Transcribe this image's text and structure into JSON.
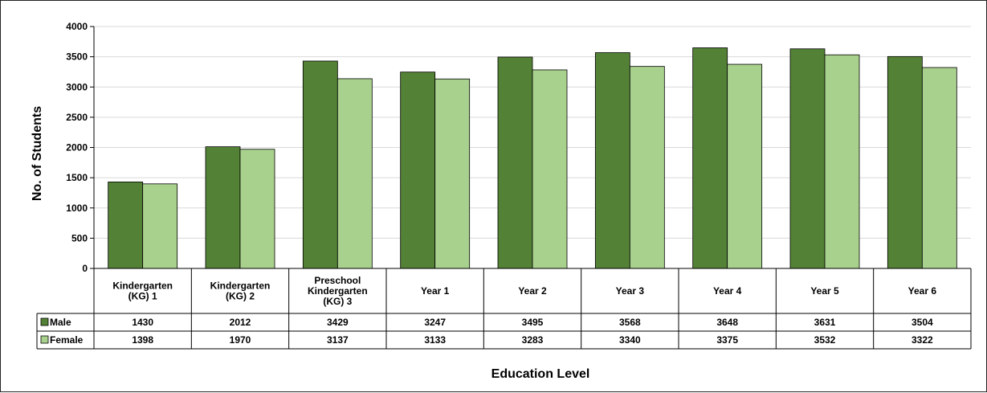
{
  "chart_data": {
    "type": "bar",
    "title": "",
    "xlabel": "Education Level",
    "ylabel": "No. of Students",
    "ylim": [
      0,
      4000
    ],
    "yticks": [
      0,
      500,
      1000,
      1500,
      2000,
      2500,
      3000,
      3500,
      4000
    ],
    "grid": true,
    "legend": "data-table",
    "categories": [
      [
        "Kindergarten",
        "(KG) 1"
      ],
      [
        "Kindergarten",
        "(KG) 2"
      ],
      [
        "Preschool",
        "Kindergarten",
        "(KG) 3"
      ],
      [
        "Year 1"
      ],
      [
        "Year 2"
      ],
      [
        "Year 3"
      ],
      [
        "Year 4"
      ],
      [
        "Year 5"
      ],
      [
        "Year 6"
      ]
    ],
    "series": [
      {
        "name": "Male",
        "color": "#538135",
        "values": [
          1430,
          2012,
          3429,
          3247,
          3495,
          3568,
          3648,
          3631,
          3504
        ]
      },
      {
        "name": "Female",
        "color": "#a9d18e",
        "values": [
          1398,
          1970,
          3137,
          3133,
          3283,
          3340,
          3375,
          3532,
          3322
        ]
      }
    ]
  }
}
